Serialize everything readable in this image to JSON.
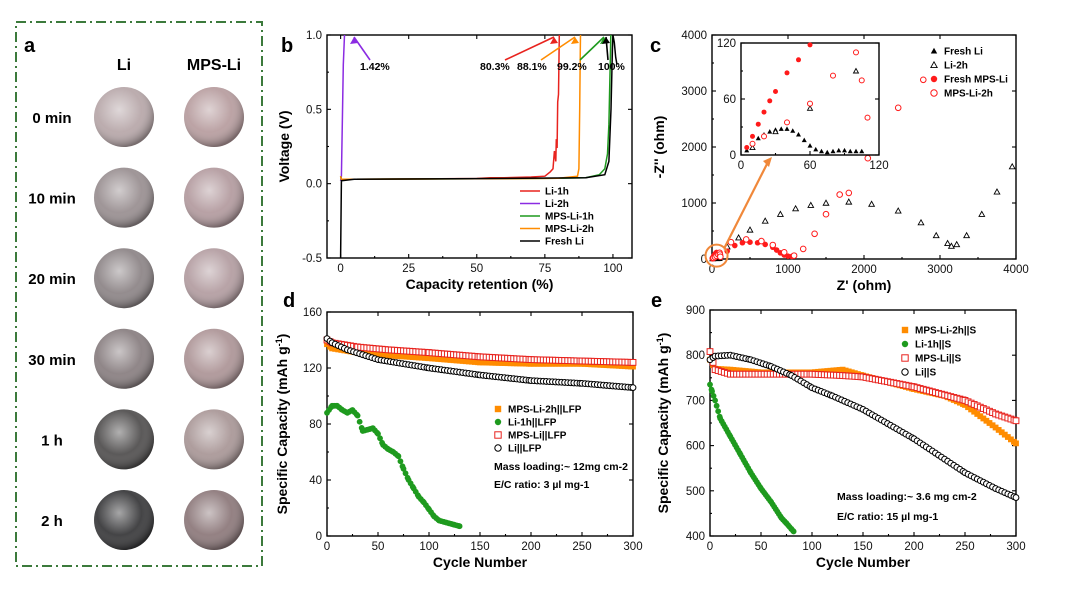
{
  "chart_data": [
    {
      "id": "a",
      "type": "photo-grid",
      "panel_label": "a",
      "columns": [
        "Li",
        "MPS-Li"
      ],
      "rows": [
        {
          "time": "0 min",
          "li": "#b8a8aa",
          "mps": "#b89ea0"
        },
        {
          "time": "10 min",
          "li": "#9a9092",
          "mps": "#b49ca0"
        },
        {
          "time": "20 min",
          "li": "#8e8688",
          "mps": "#b49ea2"
        },
        {
          "time": "30 min",
          "li": "#8a8082",
          "mps": "#ae9698"
        },
        {
          "time": "1 h",
          "li": "#525050",
          "mps": "#aa9898"
        },
        {
          "time": "2 h",
          "li": "#3a3a3c",
          "mps": "#8e7a7c"
        }
      ]
    },
    {
      "id": "b",
      "type": "line",
      "panel_label": "b",
      "xlabel": "Capacity retention (%)",
      "ylabel": "Voltage (V)",
      "xlim": [
        -5,
        107
      ],
      "ylim": [
        -0.5,
        1.0
      ],
      "xticks": [
        "0",
        "25",
        "50",
        "75",
        "100"
      ],
      "yticks": [
        "-0.5",
        "0.0",
        "0.5",
        "1.0"
      ],
      "series": [
        {
          "name": "Li-1h",
          "color": "#e8231e",
          "x": [
            0,
            0.3,
            5,
            30,
            50,
            55,
            60,
            70,
            75,
            77,
            78,
            78.5,
            79,
            79.2,
            79.5,
            79.7,
            80,
            80.2,
            80.3
          ],
          "y": [
            0.05,
            0.03,
            0.03,
            0.032,
            0.035,
            0.04,
            0.04,
            0.045,
            0.05,
            0.08,
            0.1,
            0.22,
            0.15,
            0.3,
            0.24,
            0.55,
            0.6,
            0.85,
            1.0
          ]
        },
        {
          "name": "Li-2h",
          "color": "#8b2be2",
          "x": [
            0,
            0.3,
            0.6,
            1.0,
            1.42
          ],
          "y": [
            0.02,
            0.05,
            0.4,
            0.8,
            1.0
          ]
        },
        {
          "name": "MPS-Li-1h",
          "color": "#1e9a1e",
          "x": [
            0,
            0.3,
            5,
            50,
            80,
            90,
            95,
            97,
            98,
            98.5,
            99,
            99.2
          ],
          "y": [
            0.05,
            0.03,
            0.03,
            0.033,
            0.036,
            0.04,
            0.06,
            0.1,
            0.2,
            0.4,
            0.8,
            1.0
          ]
        },
        {
          "name": "MPS-Li-2h",
          "color": "#ff8c00",
          "x": [
            0,
            0.3,
            5,
            50,
            80,
            87,
            87.5,
            87.8,
            88.0,
            88.1
          ],
          "y": [
            0.05,
            0.03,
            0.03,
            0.033,
            0.036,
            0.05,
            0.1,
            0.5,
            0.9,
            1.0
          ]
        },
        {
          "name": "Fresh Li",
          "color": "#000000",
          "x": [
            0,
            0.3,
            5,
            50,
            90,
            97,
            98.5,
            99.3,
            99.8,
            100,
            100.5,
            101,
            101.5
          ],
          "y": [
            -0.5,
            0.02,
            0.03,
            0.034,
            0.04,
            0.06,
            0.15,
            0.5,
            0.9,
            1.0,
            0.95,
            0.85,
            0.8
          ]
        }
      ],
      "annotations": [
        {
          "text": "1.42%",
          "color": "#8b2be2"
        },
        {
          "text": "80.3%",
          "color": "#e8231e"
        },
        {
          "text": "88.1%",
          "color": "#ff8c00"
        },
        {
          "text": "99.2%",
          "color": "#1e9a1e"
        },
        {
          "text": "100%",
          "color": "#000000"
        }
      ]
    },
    {
      "id": "c",
      "type": "scatter",
      "panel_label": "c",
      "xlabel": "Z' (ohm)",
      "ylabel": "-Z'' (ohm)",
      "xlim": [
        0,
        4000
      ],
      "ylim": [
        0,
        4000
      ],
      "xticks": [
        "0",
        "1000",
        "2000",
        "3000",
        "4000"
      ],
      "yticks": [
        "0",
        "1000",
        "2000",
        "3000",
        "4000"
      ],
      "series": [
        {
          "name": "Fresh Li",
          "marker": "triangle-filled",
          "color": "#000000",
          "x": [
            5,
            10,
            15,
            20,
            25,
            30,
            35,
            40,
            45,
            50,
            55,
            60,
            65,
            70,
            75,
            80,
            85,
            90,
            95,
            100,
            105
          ],
          "y": [
            5,
            12,
            18,
            22,
            25,
            27,
            28,
            28,
            26,
            22,
            16,
            10,
            6,
            4,
            3,
            4,
            5,
            5,
            4,
            4,
            4
          ]
        },
        {
          "name": "Li-2h",
          "marker": "triangle-open",
          "color": "#000000",
          "x": [
            10,
            30,
            60,
            100,
            200,
            350,
            500,
            700,
            900,
            1100,
            1300,
            1500,
            1800,
            2100,
            2450,
            2750,
            2950,
            3100,
            3150,
            3220,
            3350,
            3550,
            3750,
            3950
          ],
          "y": [
            8,
            25,
            50,
            90,
            220,
            380,
            520,
            680,
            800,
            900,
            960,
            1000,
            1020,
            980,
            860,
            650,
            420,
            280,
            230,
            260,
            420,
            800,
            1200,
            1650
          ]
        },
        {
          "name": "Fresh MPS-Li",
          "marker": "circle-filled",
          "color": "#ff1a1a",
          "x": [
            5,
            10,
            15,
            20,
            25,
            30,
            40,
            50,
            60,
            200,
            300,
            400,
            500,
            600,
            700,
            800,
            850,
            900,
            950,
            1000,
            1050
          ],
          "y": [
            8,
            20,
            33,
            46,
            58,
            68,
            88,
            102,
            118,
            140,
            240,
            290,
            300,
            290,
            260,
            210,
            160,
            110,
            70,
            50,
            45
          ]
        },
        {
          "name": "MPS-Li-2h",
          "marker": "circle-open",
          "color": "#ff1a1a",
          "x": [
            10,
            20,
            40,
            60,
            80,
            100,
            105,
            110,
            250,
            450,
            650,
            800,
            950,
            1080,
            1200,
            1350,
            1500,
            1680,
            1800,
            2050,
            2450,
            2780
          ],
          "y": [
            12,
            20,
            35,
            55,
            85,
            110,
            80,
            40,
            300,
            350,
            320,
            250,
            120,
            60,
            180,
            450,
            800,
            1150,
            1180,
            1800,
            2700,
            3200
          ]
        }
      ],
      "inset": {
        "xlim": [
          0,
          120
        ],
        "ylim": [
          0,
          120
        ],
        "xticks": [
          "0",
          "60",
          "120"
        ],
        "yticks": [
          "0",
          "60",
          "120"
        ]
      }
    },
    {
      "id": "d",
      "type": "scatter",
      "panel_label": "d",
      "xlabel": "Cycle Number",
      "ylabel": "Specific Capacity (mAh g-1)",
      "xlim": [
        0,
        300
      ],
      "ylim": [
        0,
        160
      ],
      "xticks": [
        "0",
        "50",
        "100",
        "150",
        "200",
        "250",
        "300"
      ],
      "yticks": [
        "0",
        "40",
        "80",
        "120",
        "160"
      ],
      "series": [
        {
          "name": "MPS-Li-2h||LFP",
          "marker": "square-filled",
          "color": "#ff8c00",
          "points": [
            [
              0,
              137
            ],
            [
              5,
              134
            ],
            [
              30,
              131
            ],
            [
              60,
              129
            ],
            [
              100,
              127
            ],
            [
              150,
              124
            ],
            [
              200,
              123
            ],
            [
              250,
              123
            ],
            [
              300,
              121
            ]
          ]
        },
        {
          "name": "Li-1h||LFP",
          "marker": "circle-filled",
          "color": "#1e9a1e",
          "points": [
            [
              0,
              88
            ],
            [
              5,
              93
            ],
            [
              10,
              93
            ],
            [
              15,
              90
            ],
            [
              20,
              88
            ],
            [
              25,
              90
            ],
            [
              30,
              86
            ],
            [
              35,
              75
            ],
            [
              40,
              76
            ],
            [
              45,
              77
            ],
            [
              50,
              73
            ],
            [
              55,
              65
            ],
            [
              60,
              62
            ],
            [
              65,
              60
            ],
            [
              70,
              57
            ],
            [
              75,
              48
            ],
            [
              80,
              40
            ],
            [
              85,
              34
            ],
            [
              90,
              28
            ],
            [
              95,
              24
            ],
            [
              100,
              19
            ],
            [
              105,
              14
            ],
            [
              110,
              11
            ],
            [
              115,
              10
            ],
            [
              120,
              9
            ],
            [
              125,
              8
            ],
            [
              130,
              7
            ]
          ]
        },
        {
          "name": "MPS-Li||LFP",
          "marker": "square-open",
          "color": "#e8231e",
          "points": [
            [
              0,
              140
            ],
            [
              5,
              138
            ],
            [
              30,
              135
            ],
            [
              60,
              133
            ],
            [
              100,
              131
            ],
            [
              150,
              128
            ],
            [
              200,
              126
            ],
            [
              250,
              125
            ],
            [
              300,
              124
            ]
          ]
        },
        {
          "name": "Li||LFP",
          "marker": "circle-open",
          "color": "#000000",
          "points": [
            [
              0,
              141
            ],
            [
              5,
              138
            ],
            [
              20,
              133
            ],
            [
              50,
              126
            ],
            [
              100,
              120
            ],
            [
              150,
              115
            ],
            [
              200,
              111
            ],
            [
              250,
              109
            ],
            [
              300,
              106
            ]
          ]
        }
      ],
      "notes": [
        "Mass loading:~ 12mg cm-2",
        "E/C ratio: 3 µl mg-1"
      ]
    },
    {
      "id": "e",
      "type": "scatter",
      "panel_label": "e",
      "xlabel": "Cycle Number",
      "ylabel": "Specific Capacity (mAh g-1)",
      "xlim": [
        0,
        300
      ],
      "ylim": [
        400,
        900
      ],
      "xticks": [
        "0",
        "50",
        "100",
        "150",
        "200",
        "250",
        "300"
      ],
      "yticks": [
        "400",
        "500",
        "600",
        "700",
        "800",
        "900"
      ],
      "series": [
        {
          "name": "MPS-Li-2h||S",
          "marker": "square-filled",
          "color": "#ff8c00",
          "points": [
            [
              0,
              790
            ],
            [
              5,
              770
            ],
            [
              20,
              768
            ],
            [
              50,
              762
            ],
            [
              100,
              762
            ],
            [
              130,
              768
            ],
            [
              150,
              755
            ],
            [
              200,
              725
            ],
            [
              230,
              710
            ],
            [
              250,
              690
            ],
            [
              280,
              640
            ],
            [
              300,
              605
            ]
          ]
        },
        {
          "name": "Li-1h||S",
          "marker": "circle-filled",
          "color": "#1e9a1e",
          "points": [
            [
              0,
              735
            ],
            [
              2,
              720
            ],
            [
              5,
              700
            ],
            [
              10,
              660
            ],
            [
              20,
              620
            ],
            [
              30,
              580
            ],
            [
              40,
              540
            ],
            [
              50,
              505
            ],
            [
              60,
              475
            ],
            [
              70,
              440
            ],
            [
              75,
              428
            ],
            [
              80,
              415
            ],
            [
              82,
              410
            ]
          ]
        },
        {
          "name": "MPS-Li||S",
          "marker": "square-open",
          "color": "#e8231e",
          "points": [
            [
              0,
              808
            ],
            [
              5,
              768
            ],
            [
              20,
              758
            ],
            [
              50,
              758
            ],
            [
              100,
              758
            ],
            [
              130,
              755
            ],
            [
              150,
              752
            ],
            [
              200,
              730
            ],
            [
              250,
              700
            ],
            [
              280,
              670
            ],
            [
              300,
              655
            ]
          ]
        },
        {
          "name": "Li||S",
          "marker": "circle-open",
          "color": "#000000",
          "points": [
            [
              0,
              790
            ],
            [
              5,
              798
            ],
            [
              20,
              800
            ],
            [
              40,
              790
            ],
            [
              60,
              775
            ],
            [
              80,
              755
            ],
            [
              100,
              728
            ],
            [
              120,
              710
            ],
            [
              150,
              680
            ],
            [
              200,
              615
            ],
            [
              250,
              540
            ],
            [
              280,
              505
            ],
            [
              300,
              485
            ]
          ]
        }
      ],
      "notes": [
        "Mass loading:~ 3.6 mg cm-2",
        "E/C ratio: 15 µl mg-1"
      ]
    }
  ]
}
